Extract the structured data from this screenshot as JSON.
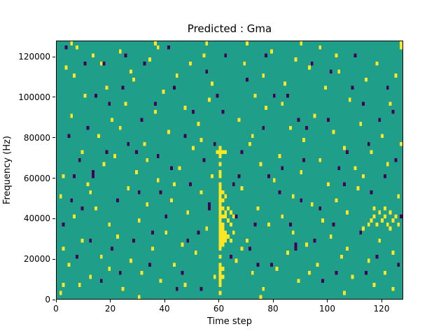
{
  "chart_data": {
    "type": "heatmap",
    "title": "Predicted : Gma",
    "xlabel": "Time step",
    "ylabel": "Frequency (Hz)",
    "xlim": [
      0,
      128
    ],
    "ylim": [
      0,
      128000
    ],
    "x_ticks": [
      0,
      20,
      40,
      60,
      80,
      100,
      120
    ],
    "x_tick_labels": [
      "0",
      "20",
      "40",
      "60",
      "80",
      "100",
      "120"
    ],
    "y_ticks": [
      0,
      20000,
      40000,
      60000,
      80000,
      100000,
      120000
    ],
    "y_tick_labels": [
      "0",
      "20000",
      "40000",
      "60000",
      "80000",
      "100000",
      "120000"
    ],
    "grid": {
      "cols": 128,
      "rows": 64,
      "freq_bin_hz": 2000
    },
    "legend": "none",
    "colors": {
      "background": "#1f9e89",
      "high": "#fde725",
      "low": "#440154",
      "axis": "#000000",
      "figure_bg": "#ffffff"
    },
    "cells_high": [
      [
        1,
        1
      ],
      [
        1,
        25
      ],
      [
        2,
        3
      ],
      [
        2,
        12
      ],
      [
        2,
        30
      ],
      [
        3,
        57
      ],
      [
        4,
        8
      ],
      [
        5,
        45
      ],
      [
        5,
        63
      ],
      [
        6,
        20
      ],
      [
        6,
        55
      ],
      [
        7,
        62
      ],
      [
        8,
        3
      ],
      [
        9,
        14
      ],
      [
        9,
        36
      ],
      [
        10,
        50
      ],
      [
        11,
        28
      ],
      [
        12,
        5
      ],
      [
        12,
        26
      ],
      [
        13,
        60
      ],
      [
        14,
        22
      ],
      [
        15,
        40
      ],
      [
        16,
        10
      ],
      [
        16,
        58
      ],
      [
        17,
        33
      ],
      [
        18,
        52
      ],
      [
        19,
        7
      ],
      [
        19,
        18
      ],
      [
        20,
        44
      ],
      [
        21,
        35
      ],
      [
        22,
        15
      ],
      [
        23,
        42
      ],
      [
        23,
        61
      ],
      [
        24,
        2
      ],
      [
        25,
        48
      ],
      [
        26,
        27
      ],
      [
        27,
        9
      ],
      [
        27,
        56
      ],
      [
        28,
        54
      ],
      [
        29,
        31
      ],
      [
        30,
        0
      ],
      [
        30,
        19
      ],
      [
        31,
        6
      ],
      [
        32,
        38
      ],
      [
        33,
        23
      ],
      [
        33,
        34
      ],
      [
        34,
        59
      ],
      [
        35,
        12
      ],
      [
        36,
        46
      ],
      [
        36,
        63
      ],
      [
        37,
        29
      ],
      [
        37,
        62
      ],
      [
        38,
        4
      ],
      [
        39,
        51
      ],
      [
        40,
        16
      ],
      [
        41,
        41
      ],
      [
        42,
        24
      ],
      [
        43,
        8
      ],
      [
        43,
        28
      ],
      [
        44,
        55
      ],
      [
        45,
        32
      ],
      [
        46,
        13
      ],
      [
        47,
        3
      ],
      [
        47,
        47
      ],
      [
        48,
        21
      ],
      [
        49,
        58
      ],
      [
        50,
        37
      ],
      [
        51,
        11
      ],
      [
        52,
        43
      ],
      [
        53,
        26
      ],
      [
        53,
        39
      ],
      [
        54,
        60
      ],
      [
        55,
        17
      ],
      [
        55,
        63
      ],
      [
        56,
        49
      ],
      [
        57,
        30
      ],
      [
        57,
        53
      ],
      [
        58,
        5
      ],
      [
        59,
        36
      ],
      [
        60,
        1
      ],
      [
        60,
        3
      ],
      [
        60,
        4
      ],
      [
        60,
        5
      ],
      [
        60,
        6
      ],
      [
        60,
        7
      ],
      [
        60,
        8
      ],
      [
        60,
        10
      ],
      [
        60,
        12
      ],
      [
        60,
        13
      ],
      [
        60,
        14
      ],
      [
        60,
        15
      ],
      [
        60,
        16
      ],
      [
        60,
        17
      ],
      [
        60,
        18
      ],
      [
        60,
        19
      ],
      [
        60,
        20
      ],
      [
        60,
        21
      ],
      [
        60,
        22
      ],
      [
        60,
        23
      ],
      [
        60,
        24
      ],
      [
        60,
        25
      ],
      [
        60,
        26
      ],
      [
        60,
        27
      ],
      [
        60,
        28
      ],
      [
        60,
        30
      ],
      [
        60,
        31
      ],
      [
        60,
        33
      ],
      [
        60,
        35
      ],
      [
        60,
        36
      ],
      [
        60,
        37
      ],
      [
        61,
        5
      ],
      [
        61,
        7
      ],
      [
        61,
        13
      ],
      [
        61,
        14
      ],
      [
        61,
        15
      ],
      [
        61,
        16
      ],
      [
        61,
        17
      ],
      [
        61,
        18
      ],
      [
        61,
        20
      ],
      [
        61,
        22
      ],
      [
        61,
        24
      ],
      [
        61,
        26
      ],
      [
        61,
        36
      ],
      [
        62,
        14
      ],
      [
        62,
        15
      ],
      [
        62,
        16
      ],
      [
        62,
        20
      ],
      [
        62,
        21
      ],
      [
        62,
        25
      ],
      [
        62,
        36
      ],
      [
        63,
        15
      ],
      [
        63,
        19
      ],
      [
        63,
        22
      ],
      [
        64,
        14
      ],
      [
        64,
        18
      ],
      [
        64,
        21
      ],
      [
        65,
        16
      ],
      [
        65,
        20
      ],
      [
        66,
        9
      ],
      [
        67,
        44
      ],
      [
        68,
        12
      ],
      [
        68,
        27
      ],
      [
        69,
        58
      ],
      [
        70,
        14
      ],
      [
        70,
        63
      ],
      [
        71,
        38
      ],
      [
        72,
        6
      ],
      [
        72,
        40
      ],
      [
        73,
        50
      ],
      [
        74,
        22
      ],
      [
        75,
        0
      ],
      [
        75,
        33
      ],
      [
        76,
        2
      ],
      [
        76,
        55
      ],
      [
        77,
        47
      ],
      [
        78,
        18
      ],
      [
        79,
        61
      ],
      [
        80,
        29
      ],
      [
        81,
        7
      ],
      [
        82,
        35
      ],
      [
        83,
        20
      ],
      [
        83,
        48
      ],
      [
        84,
        53
      ],
      [
        85,
        11
      ],
      [
        86,
        42
      ],
      [
        87,
        16
      ],
      [
        87,
        25
      ],
      [
        88,
        59
      ],
      [
        89,
        4
      ],
      [
        90,
        31
      ],
      [
        90,
        63
      ],
      [
        91,
        39
      ],
      [
        92,
        13
      ],
      [
        93,
        6
      ],
      [
        93,
        57
      ],
      [
        94,
        23
      ],
      [
        95,
        45
      ],
      [
        96,
        8
      ],
      [
        97,
        34
      ],
      [
        97,
        62
      ],
      [
        98,
        19
      ],
      [
        99,
        52
      ],
      [
        100,
        28
      ],
      [
        101,
        15
      ],
      [
        102,
        41
      ],
      [
        103,
        24
      ],
      [
        103,
        60
      ],
      [
        104,
        56
      ],
      [
        105,
        10
      ],
      [
        106,
        1
      ],
      [
        106,
        37
      ],
      [
        107,
        12
      ],
      [
        107,
        21
      ],
      [
        108,
        49
      ],
      [
        109,
        5
      ],
      [
        110,
        32
      ],
      [
        111,
        27
      ],
      [
        112,
        43
      ],
      [
        113,
        17
      ],
      [
        113,
        30
      ],
      [
        114,
        54
      ],
      [
        115,
        9
      ],
      [
        116,
        36
      ],
      [
        117,
        3
      ],
      [
        117,
        22
      ],
      [
        118,
        58
      ],
      [
        119,
        14
      ],
      [
        120,
        40
      ],
      [
        115,
        18
      ],
      [
        116,
        19
      ],
      [
        117,
        20
      ],
      [
        118,
        18
      ],
      [
        119,
        21
      ],
      [
        120,
        19
      ],
      [
        121,
        20
      ],
      [
        121,
        22
      ],
      [
        122,
        18
      ],
      [
        123,
        17
      ],
      [
        123,
        21
      ],
      [
        124,
        19
      ],
      [
        125,
        20
      ],
      [
        126,
        18
      ],
      [
        121,
        6
      ],
      [
        122,
        33
      ],
      [
        123,
        48
      ],
      [
        124,
        2
      ],
      [
        124,
        11
      ],
      [
        125,
        55
      ],
      [
        126,
        25
      ],
      [
        127,
        38
      ],
      [
        127,
        62
      ],
      [
        127,
        63
      ]
    ],
    "cells_low": [
      [
        2,
        18
      ],
      [
        3,
        62
      ],
      [
        4,
        40
      ],
      [
        5,
        24
      ],
      [
        6,
        30
      ],
      [
        7,
        10
      ],
      [
        8,
        34
      ],
      [
        9,
        22
      ],
      [
        10,
        58
      ],
      [
        11,
        42
      ],
      [
        12,
        14
      ],
      [
        13,
        30
      ],
      [
        13,
        31
      ],
      [
        14,
        50
      ],
      [
        16,
        4
      ],
      [
        17,
        58
      ],
      [
        18,
        36
      ],
      [
        19,
        48
      ],
      [
        20,
        12
      ],
      [
        22,
        24
      ],
      [
        23,
        6
      ],
      [
        24,
        52
      ],
      [
        25,
        60
      ],
      [
        26,
        38
      ],
      [
        28,
        14
      ],
      [
        29,
        36
      ],
      [
        30,
        26
      ],
      [
        31,
        44
      ],
      [
        32,
        58
      ],
      [
        34,
        8
      ],
      [
        35,
        16
      ],
      [
        36,
        48
      ],
      [
        37,
        35
      ],
      [
        38,
        26
      ],
      [
        40,
        20
      ],
      [
        41,
        62
      ],
      [
        42,
        32
      ],
      [
        43,
        52
      ],
      [
        44,
        2
      ],
      [
        46,
        6
      ],
      [
        47,
        40
      ],
      [
        48,
        14
      ],
      [
        49,
        28
      ],
      [
        50,
        46
      ],
      [
        52,
        16
      ],
      [
        53,
        2
      ],
      [
        54,
        34
      ],
      [
        55,
        56
      ],
      [
        56,
        22
      ],
      [
        56,
        23
      ],
      [
        58,
        38
      ],
      [
        59,
        50
      ],
      [
        61,
        46
      ],
      [
        62,
        60
      ],
      [
        64,
        10
      ],
      [
        65,
        28
      ],
      [
        66,
        20
      ],
      [
        67,
        30
      ],
      [
        68,
        36
      ],
      [
        70,
        54
      ],
      [
        71,
        12
      ],
      [
        73,
        18
      ],
      [
        74,
        8
      ],
      [
        76,
        42
      ],
      [
        77,
        60
      ],
      [
        78,
        30
      ],
      [
        79,
        8
      ],
      [
        80,
        50
      ],
      [
        82,
        26
      ],
      [
        83,
        32
      ],
      [
        85,
        50
      ],
      [
        86,
        18
      ],
      [
        88,
        12
      ],
      [
        88,
        13
      ],
      [
        89,
        44
      ],
      [
        90,
        24
      ],
      [
        91,
        34
      ],
      [
        92,
        42
      ],
      [
        94,
        58
      ],
      [
        95,
        14
      ],
      [
        97,
        22
      ],
      [
        98,
        4
      ],
      [
        100,
        44
      ],
      [
        101,
        56
      ],
      [
        102,
        18
      ],
      [
        103,
        6
      ],
      [
        104,
        32
      ],
      [
        106,
        28
      ],
      [
        107,
        36
      ],
      [
        109,
        52
      ],
      [
        110,
        60
      ],
      [
        112,
        16
      ],
      [
        113,
        48
      ],
      [
        114,
        6
      ],
      [
        115,
        38
      ],
      [
        116,
        26
      ],
      [
        118,
        10
      ],
      [
        119,
        44
      ],
      [
        121,
        30
      ],
      [
        122,
        52
      ],
      [
        124,
        46
      ],
      [
        125,
        34
      ],
      [
        126,
        8
      ],
      [
        127,
        20
      ]
    ]
  }
}
